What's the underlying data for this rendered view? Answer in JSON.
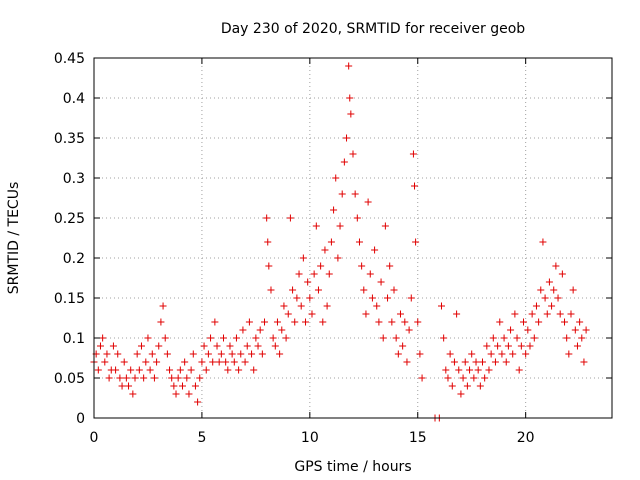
{
  "chart_data": {
    "type": "scatter",
    "title": "Day 230 of 2020, SRMTID for receiver geob",
    "xlabel": "GPS time / hours",
    "ylabel": "SRMTID / TECUs",
    "xlim": [
      0,
      24
    ],
    "ylim": [
      0,
      0.45
    ],
    "x_ticks": [
      "0",
      "5",
      "10",
      "15",
      "20"
    ],
    "y_ticks": [
      "0",
      "0.05",
      "0.1",
      "0.15",
      "0.2",
      "0.25",
      "0.3",
      "0.35",
      "0.4",
      "0.45"
    ],
    "grid": true,
    "marker": "+",
    "color": "#e00000",
    "series": [
      {
        "name": "SRMTID",
        "points": [
          [
            0.0,
            0.07
          ],
          [
            0.1,
            0.08
          ],
          [
            0.2,
            0.06
          ],
          [
            0.3,
            0.09
          ],
          [
            0.4,
            0.1
          ],
          [
            0.5,
            0.07
          ],
          [
            0.6,
            0.08
          ],
          [
            0.7,
            0.05
          ],
          [
            0.8,
            0.06
          ],
          [
            0.9,
            0.09
          ],
          [
            1.0,
            0.06
          ],
          [
            1.1,
            0.08
          ],
          [
            1.2,
            0.05
          ],
          [
            1.3,
            0.04
          ],
          [
            1.4,
            0.07
          ],
          [
            1.5,
            0.05
          ],
          [
            1.6,
            0.04
          ],
          [
            1.7,
            0.06
          ],
          [
            1.8,
            0.03
          ],
          [
            1.9,
            0.05
          ],
          [
            2.0,
            0.08
          ],
          [
            2.1,
            0.06
          ],
          [
            2.2,
            0.09
          ],
          [
            2.3,
            0.05
          ],
          [
            2.4,
            0.07
          ],
          [
            2.5,
            0.1
          ],
          [
            2.6,
            0.06
          ],
          [
            2.7,
            0.08
          ],
          [
            2.8,
            0.05
          ],
          [
            2.9,
            0.07
          ],
          [
            3.0,
            0.09
          ],
          [
            3.1,
            0.12
          ],
          [
            3.2,
            0.14
          ],
          [
            3.3,
            0.1
          ],
          [
            3.4,
            0.08
          ],
          [
            3.5,
            0.06
          ],
          [
            3.6,
            0.05
          ],
          [
            3.7,
            0.04
          ],
          [
            3.8,
            0.03
          ],
          [
            3.9,
            0.05
          ],
          [
            4.0,
            0.06
          ],
          [
            4.1,
            0.04
          ],
          [
            4.2,
            0.07
          ],
          [
            4.3,
            0.05
          ],
          [
            4.4,
            0.03
          ],
          [
            4.5,
            0.06
          ],
          [
            4.6,
            0.08
          ],
          [
            4.7,
            0.04
          ],
          [
            4.8,
            0.02
          ],
          [
            4.9,
            0.05
          ],
          [
            5.0,
            0.07
          ],
          [
            5.1,
            0.09
          ],
          [
            5.2,
            0.06
          ],
          [
            5.3,
            0.08
          ],
          [
            5.4,
            0.1
          ],
          [
            5.5,
            0.07
          ],
          [
            5.6,
            0.12
          ],
          [
            5.7,
            0.09
          ],
          [
            5.8,
            0.07
          ],
          [
            5.9,
            0.08
          ],
          [
            6.0,
            0.1
          ],
          [
            6.1,
            0.07
          ],
          [
            6.2,
            0.06
          ],
          [
            6.3,
            0.09
          ],
          [
            6.4,
            0.08
          ],
          [
            6.5,
            0.07
          ],
          [
            6.6,
            0.1
          ],
          [
            6.7,
            0.06
          ],
          [
            6.8,
            0.08
          ],
          [
            6.9,
            0.11
          ],
          [
            7.0,
            0.07
          ],
          [
            7.1,
            0.09
          ],
          [
            7.2,
            0.12
          ],
          [
            7.3,
            0.08
          ],
          [
            7.4,
            0.06
          ],
          [
            7.5,
            0.1
          ],
          [
            7.6,
            0.09
          ],
          [
            7.7,
            0.11
          ],
          [
            7.8,
            0.08
          ],
          [
            7.9,
            0.12
          ],
          [
            8.0,
            0.25
          ],
          [
            8.05,
            0.22
          ],
          [
            8.1,
            0.19
          ],
          [
            8.2,
            0.16
          ],
          [
            8.3,
            0.1
          ],
          [
            8.4,
            0.09
          ],
          [
            8.5,
            0.12
          ],
          [
            8.6,
            0.08
          ],
          [
            8.7,
            0.11
          ],
          [
            8.8,
            0.14
          ],
          [
            8.9,
            0.1
          ],
          [
            9.0,
            0.13
          ],
          [
            9.1,
            0.25
          ],
          [
            9.2,
            0.16
          ],
          [
            9.3,
            0.12
          ],
          [
            9.4,
            0.15
          ],
          [
            9.5,
            0.18
          ],
          [
            9.6,
            0.14
          ],
          [
            9.7,
            0.2
          ],
          [
            9.8,
            0.12
          ],
          [
            9.9,
            0.17
          ],
          [
            10.0,
            0.15
          ],
          [
            10.1,
            0.13
          ],
          [
            10.2,
            0.18
          ],
          [
            10.3,
            0.24
          ],
          [
            10.4,
            0.16
          ],
          [
            10.5,
            0.19
          ],
          [
            10.6,
            0.12
          ],
          [
            10.7,
            0.21
          ],
          [
            10.8,
            0.14
          ],
          [
            10.9,
            0.18
          ],
          [
            11.0,
            0.22
          ],
          [
            11.1,
            0.26
          ],
          [
            11.2,
            0.3
          ],
          [
            11.3,
            0.2
          ],
          [
            11.4,
            0.24
          ],
          [
            11.5,
            0.28
          ],
          [
            11.6,
            0.32
          ],
          [
            11.7,
            0.35
          ],
          [
            11.8,
            0.44
          ],
          [
            11.85,
            0.4
          ],
          [
            11.9,
            0.38
          ],
          [
            12.0,
            0.33
          ],
          [
            12.1,
            0.28
          ],
          [
            12.2,
            0.25
          ],
          [
            12.3,
            0.22
          ],
          [
            12.4,
            0.19
          ],
          [
            12.5,
            0.16
          ],
          [
            12.6,
            0.13
          ],
          [
            12.7,
            0.27
          ],
          [
            12.8,
            0.18
          ],
          [
            12.9,
            0.15
          ],
          [
            13.0,
            0.21
          ],
          [
            13.1,
            0.14
          ],
          [
            13.2,
            0.12
          ],
          [
            13.3,
            0.17
          ],
          [
            13.4,
            0.1
          ],
          [
            13.5,
            0.24
          ],
          [
            13.6,
            0.15
          ],
          [
            13.7,
            0.19
          ],
          [
            13.8,
            0.12
          ],
          [
            13.9,
            0.16
          ],
          [
            14.0,
            0.1
          ],
          [
            14.1,
            0.08
          ],
          [
            14.2,
            0.13
          ],
          [
            14.3,
            0.09
          ],
          [
            14.4,
            0.12
          ],
          [
            14.5,
            0.07
          ],
          [
            14.6,
            0.11
          ],
          [
            14.7,
            0.15
          ],
          [
            14.8,
            0.33
          ],
          [
            14.85,
            0.29
          ],
          [
            14.9,
            0.22
          ],
          [
            15.0,
            0.12
          ],
          [
            15.1,
            0.08
          ],
          [
            15.2,
            0.05
          ],
          [
            15.8,
            0.0
          ],
          [
            16.0,
            0.0
          ],
          [
            16.1,
            0.14
          ],
          [
            16.2,
            0.1
          ],
          [
            16.3,
            0.06
          ],
          [
            16.4,
            0.05
          ],
          [
            16.5,
            0.08
          ],
          [
            16.6,
            0.04
          ],
          [
            16.7,
            0.07
          ],
          [
            16.8,
            0.13
          ],
          [
            16.9,
            0.06
          ],
          [
            17.0,
            0.03
          ],
          [
            17.1,
            0.05
          ],
          [
            17.2,
            0.07
          ],
          [
            17.3,
            0.04
          ],
          [
            17.4,
            0.06
          ],
          [
            17.5,
            0.08
          ],
          [
            17.6,
            0.05
          ],
          [
            17.7,
            0.07
          ],
          [
            17.8,
            0.06
          ],
          [
            17.9,
            0.04
          ],
          [
            18.0,
            0.07
          ],
          [
            18.1,
            0.05
          ],
          [
            18.2,
            0.09
          ],
          [
            18.3,
            0.06
          ],
          [
            18.4,
            0.08
          ],
          [
            18.5,
            0.1
          ],
          [
            18.6,
            0.07
          ],
          [
            18.7,
            0.09
          ],
          [
            18.8,
            0.12
          ],
          [
            18.9,
            0.08
          ],
          [
            19.0,
            0.1
          ],
          [
            19.1,
            0.07
          ],
          [
            19.2,
            0.09
          ],
          [
            19.3,
            0.11
          ],
          [
            19.4,
            0.08
          ],
          [
            19.5,
            0.13
          ],
          [
            19.6,
            0.1
          ],
          [
            19.7,
            0.06
          ],
          [
            19.8,
            0.09
          ],
          [
            19.9,
            0.12
          ],
          [
            20.0,
            0.08
          ],
          [
            20.1,
            0.11
          ],
          [
            20.2,
            0.09
          ],
          [
            20.3,
            0.13
          ],
          [
            20.4,
            0.1
          ],
          [
            20.5,
            0.14
          ],
          [
            20.6,
            0.12
          ],
          [
            20.7,
            0.16
          ],
          [
            20.8,
            0.22
          ],
          [
            20.9,
            0.15
          ],
          [
            21.0,
            0.13
          ],
          [
            21.1,
            0.17
          ],
          [
            21.2,
            0.14
          ],
          [
            21.3,
            0.16
          ],
          [
            21.4,
            0.19
          ],
          [
            21.5,
            0.15
          ],
          [
            21.6,
            0.13
          ],
          [
            21.7,
            0.18
          ],
          [
            21.8,
            0.12
          ],
          [
            21.9,
            0.1
          ],
          [
            22.0,
            0.08
          ],
          [
            22.1,
            0.13
          ],
          [
            22.2,
            0.16
          ],
          [
            22.3,
            0.11
          ],
          [
            22.4,
            0.09
          ],
          [
            22.5,
            0.12
          ],
          [
            22.6,
            0.1
          ],
          [
            22.7,
            0.07
          ],
          [
            22.8,
            0.11
          ]
        ]
      }
    ]
  }
}
